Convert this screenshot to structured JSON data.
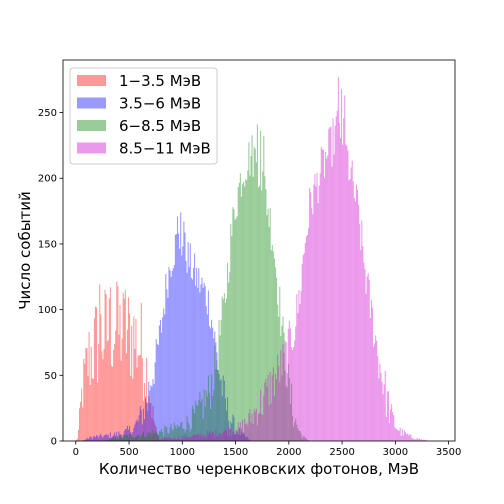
{
  "chart_data": {
    "type": "bar",
    "subtype": "overlaid-histogram",
    "title": "",
    "xlabel": "Количество черенковских фотонов, МэВ",
    "ylabel": "Число событий",
    "xlim": [
      -120,
      3560
    ],
    "ylim": [
      0,
      290
    ],
    "x_ticks": [
      0,
      500,
      1000,
      1500,
      2000,
      2500,
      3000,
      3500
    ],
    "y_ticks": [
      0,
      50,
      100,
      150,
      200,
      250
    ],
    "bin_width": 10,
    "alpha": 0.4,
    "grid": false,
    "legend_position": "top-left",
    "series": [
      {
        "name": "1−3.5 МэВ",
        "color": "#ff0000",
        "profile": [
          [
            0,
            0
          ],
          [
            20,
            3
          ],
          [
            60,
            38
          ],
          [
            120,
            62
          ],
          [
            200,
            75
          ],
          [
            280,
            82
          ],
          [
            350,
            84
          ],
          [
            450,
            83
          ],
          [
            540,
            80
          ],
          [
            620,
            70
          ],
          [
            680,
            48
          ],
          [
            720,
            22
          ],
          [
            760,
            6
          ],
          [
            800,
            0
          ]
        ],
        "spike_amplitude": 40,
        "peak_bins": [
          [
            220,
            119
          ],
          [
            320,
            117
          ],
          [
            385,
            118
          ],
          [
            455,
            115
          ]
        ]
      },
      {
        "name": "3.5−6 МэВ",
        "color": "#0000ff",
        "profile": [
          [
            50,
            0
          ],
          [
            150,
            3
          ],
          [
            300,
            4
          ],
          [
            450,
            6
          ],
          [
            550,
            10
          ],
          [
            650,
            25
          ],
          [
            700,
            45
          ],
          [
            750,
            60
          ],
          [
            800,
            85
          ],
          [
            850,
            118
          ],
          [
            900,
            140
          ],
          [
            950,
            152
          ],
          [
            1000,
            150
          ],
          [
            1050,
            140
          ],
          [
            1100,
            130
          ],
          [
            1150,
            122
          ],
          [
            1200,
            115
          ],
          [
            1250,
            105
          ],
          [
            1300,
            80
          ],
          [
            1350,
            50
          ],
          [
            1400,
            30
          ],
          [
            1450,
            17
          ],
          [
            1500,
            10
          ],
          [
            1550,
            5
          ],
          [
            1600,
            3
          ],
          [
            1650,
            0
          ]
        ],
        "spike_amplitude": 16,
        "peak_bins": [
          [
            945,
            171
          ],
          [
            975,
            174
          ],
          [
            1010,
            167
          ]
        ]
      },
      {
        "name": "6−8.5 МэВ",
        "color": "#008000",
        "profile": [
          [
            250,
            0
          ],
          [
            350,
            2
          ],
          [
            500,
            4
          ],
          [
            650,
            5
          ],
          [
            800,
            7
          ],
          [
            950,
            10
          ],
          [
            1050,
            14
          ],
          [
            1150,
            22
          ],
          [
            1250,
            36
          ],
          [
            1320,
            60
          ],
          [
            1350,
            80
          ],
          [
            1400,
            105
          ],
          [
            1450,
            150
          ],
          [
            1500,
            180
          ],
          [
            1550,
            200
          ],
          [
            1600,
            212
          ],
          [
            1650,
            218
          ],
          [
            1700,
            215
          ],
          [
            1750,
            200
          ],
          [
            1800,
            180
          ],
          [
            1850,
            155
          ],
          [
            1900,
            115
          ],
          [
            1950,
            75
          ],
          [
            2000,
            40
          ],
          [
            2050,
            18
          ],
          [
            2100,
            7
          ],
          [
            2150,
            2
          ],
          [
            2200,
            0
          ]
        ],
        "spike_amplitude": 18,
        "peak_bins": [
          [
            1695,
            241
          ],
          [
            1728,
            236
          ],
          [
            1760,
            232
          ]
        ]
      },
      {
        "name": "8.5−11 МэВ",
        "color": "#cc00cc",
        "profile": [
          [
            700,
            0
          ],
          [
            850,
            2
          ],
          [
            1000,
            3
          ],
          [
            1150,
            4
          ],
          [
            1300,
            6
          ],
          [
            1450,
            8
          ],
          [
            1550,
            10
          ],
          [
            1650,
            18
          ],
          [
            1750,
            30
          ],
          [
            1850,
            45
          ],
          [
            1950,
            60
          ],
          [
            2050,
            85
          ],
          [
            2100,
            110
          ],
          [
            2150,
            150
          ],
          [
            2200,
            180
          ],
          [
            2300,
            205
          ],
          [
            2400,
            225
          ],
          [
            2450,
            238
          ],
          [
            2500,
            235
          ],
          [
            2550,
            215
          ],
          [
            2600,
            195
          ],
          [
            2650,
            175
          ],
          [
            2700,
            140
          ],
          [
            2750,
            110
          ],
          [
            2800,
            85
          ],
          [
            2850,
            60
          ],
          [
            2900,
            40
          ],
          [
            2950,
            22
          ],
          [
            3000,
            12
          ],
          [
            3050,
            7
          ],
          [
            3150,
            3
          ],
          [
            3250,
            1
          ],
          [
            3350,
            0
          ]
        ],
        "spike_amplitude": 18,
        "peak_bins": [
          [
            2455,
            277
          ],
          [
            2490,
            268
          ],
          [
            2520,
            263
          ]
        ]
      }
    ]
  }
}
